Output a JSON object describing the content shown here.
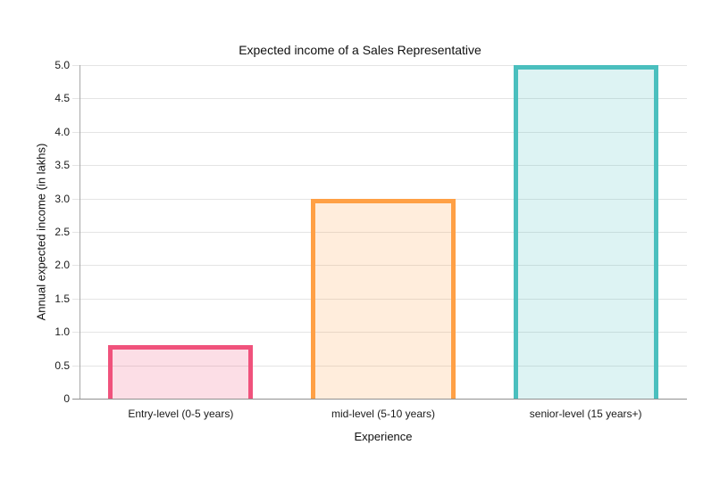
{
  "chart": {
    "title": "Expected income of a Sales Representative",
    "background_color": "#ffffff",
    "text_color": "#1a1a1a",
    "gridline_color": "#e4e4e4",
    "axis_line_color": "#8f8f8f",
    "y_axis_line_color": "#a8a8a8"
  },
  "chart_data": {
    "type": "bar",
    "title": "Expected income of a Sales Representative",
    "xlabel": "Experience",
    "ylabel": "Annual expected income (in lakhs)",
    "categories": [
      "Entry-level (0-5 years)",
      "mid-level (5-10 years)",
      "senior-level (15 years+)"
    ],
    "values": [
      0.8,
      3.0,
      5.0
    ],
    "ylim": [
      0,
      5
    ],
    "ytick_labels": [
      "0",
      "0.5",
      "1.0",
      "1.5",
      "2.0",
      "2.5",
      "3.0",
      "3.5",
      "4.0",
      "4.5",
      "5.0"
    ],
    "grid": true,
    "legend": "none",
    "bar_stroke_colors": [
      "#F0527C",
      "#FFA045",
      "#4ABFBE"
    ],
    "bar_fill_colors": [
      "rgba(240,82,124,0.19)",
      "rgba(255,160,69,0.19)",
      "rgba(74,191,190,0.19)"
    ]
  }
}
